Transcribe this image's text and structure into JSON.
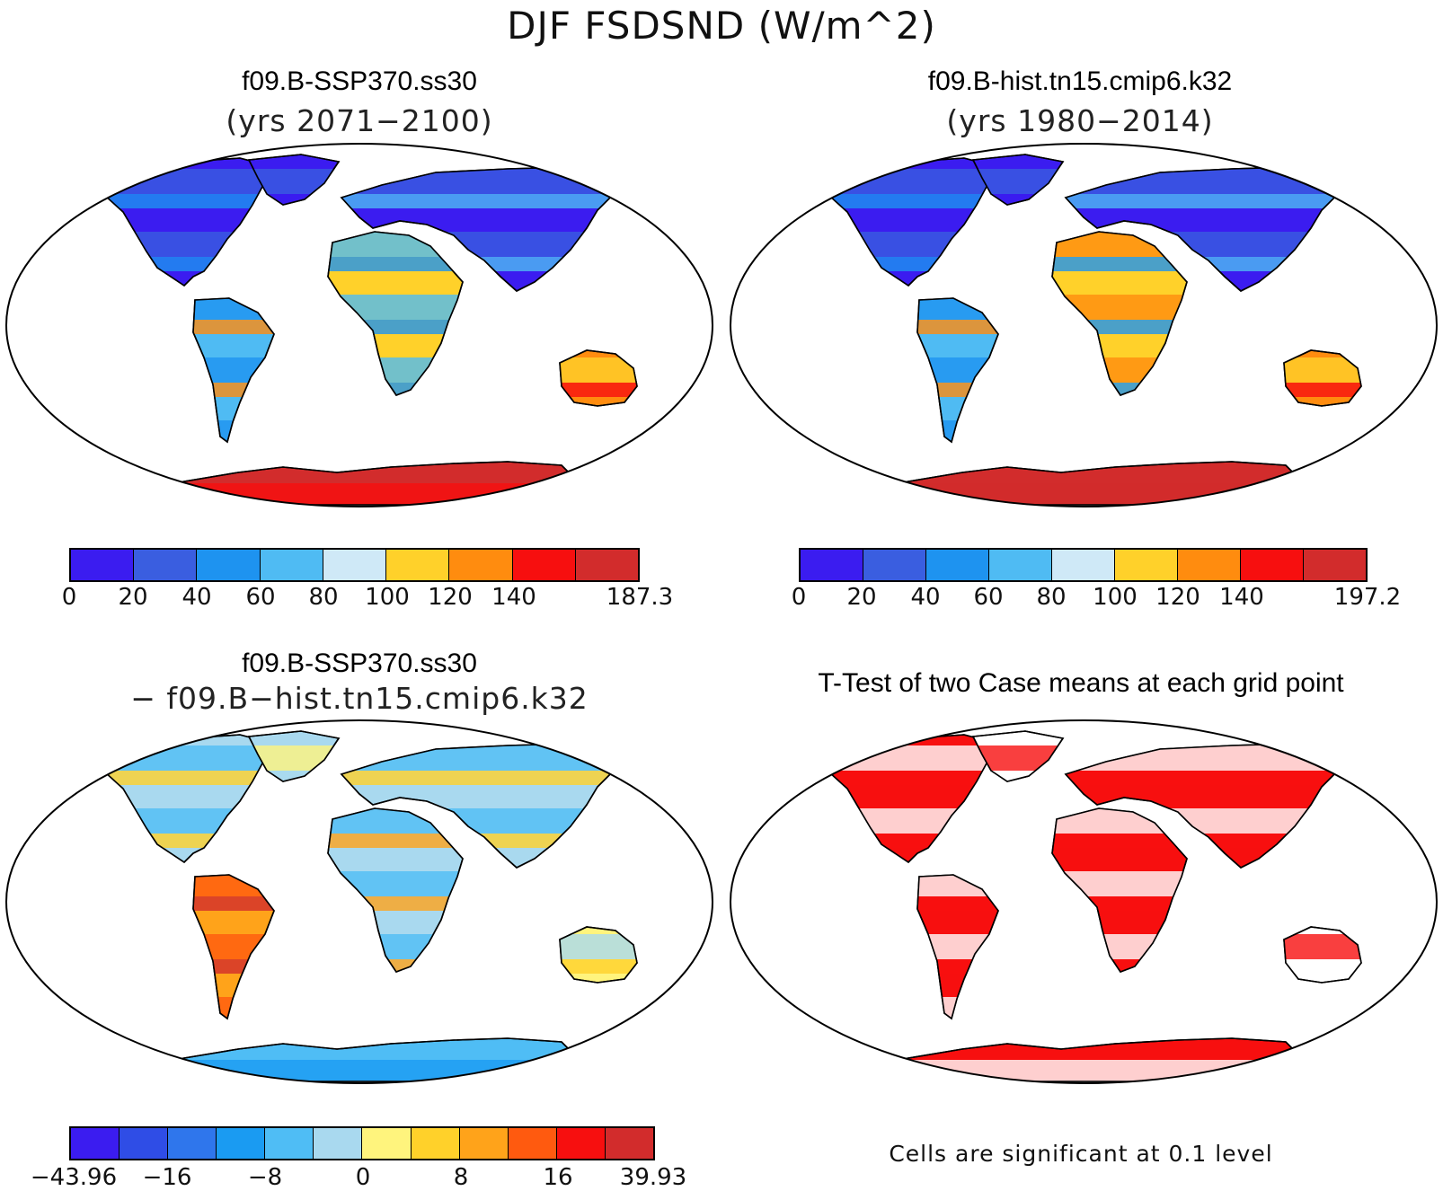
{
  "title": "DJF FSDSND (W/m^2)",
  "panels": {
    "ssp": {
      "title": "f09.B-SSP370.ss30",
      "subtitle": "(yrs 2071−2100)",
      "colorbar": {
        "colors": [
          "#3b1cf0",
          "#3a5ee0",
          "#1e93f0",
          "#4fbbf3",
          "#cfe9f7",
          "#ffd12a",
          "#ff8c0f",
          "#f70f0f",
          "#d22c2c"
        ],
        "ticks": [
          "0",
          "20",
          "40",
          "60",
          "80",
          "100",
          "120",
          "140",
          "187.3"
        ]
      }
    },
    "hist": {
      "title": "f09.B-hist.tn15.cmip6.k32",
      "subtitle": "(yrs 1980−2014)",
      "colorbar": {
        "colors": [
          "#3b1cf0",
          "#3a5ee0",
          "#1e93f0",
          "#4fbbf3",
          "#cfe9f7",
          "#ffd12a",
          "#ff8c0f",
          "#f70f0f",
          "#d22c2c"
        ],
        "ticks": [
          "0",
          "20",
          "40",
          "60",
          "80",
          "100",
          "120",
          "140",
          "197.2"
        ]
      }
    },
    "diff": {
      "title": "f09.B-SSP370.ss30",
      "subtitle": "− f09.B−hist.tn15.cmip6.k32",
      "colorbar": {
        "colors": [
          "#3b1cf0",
          "#2f4de6",
          "#2f76ec",
          "#1a9bf2",
          "#4fbdf5",
          "#a9d9ef",
          "#fff47d",
          "#ffd12a",
          "#ffa31a",
          "#ff5a0f",
          "#f70f0f",
          "#d22c2c"
        ],
        "ticks": [
          "−43.96",
          "−16",
          "−8",
          "0",
          "8",
          "16",
          "39.93"
        ]
      }
    },
    "ttest": {
      "title": "T-Test of two Case means at each grid point",
      "note": "Cells are significant at 0.1 level",
      "sig_color": "#f70f0f"
    }
  }
}
